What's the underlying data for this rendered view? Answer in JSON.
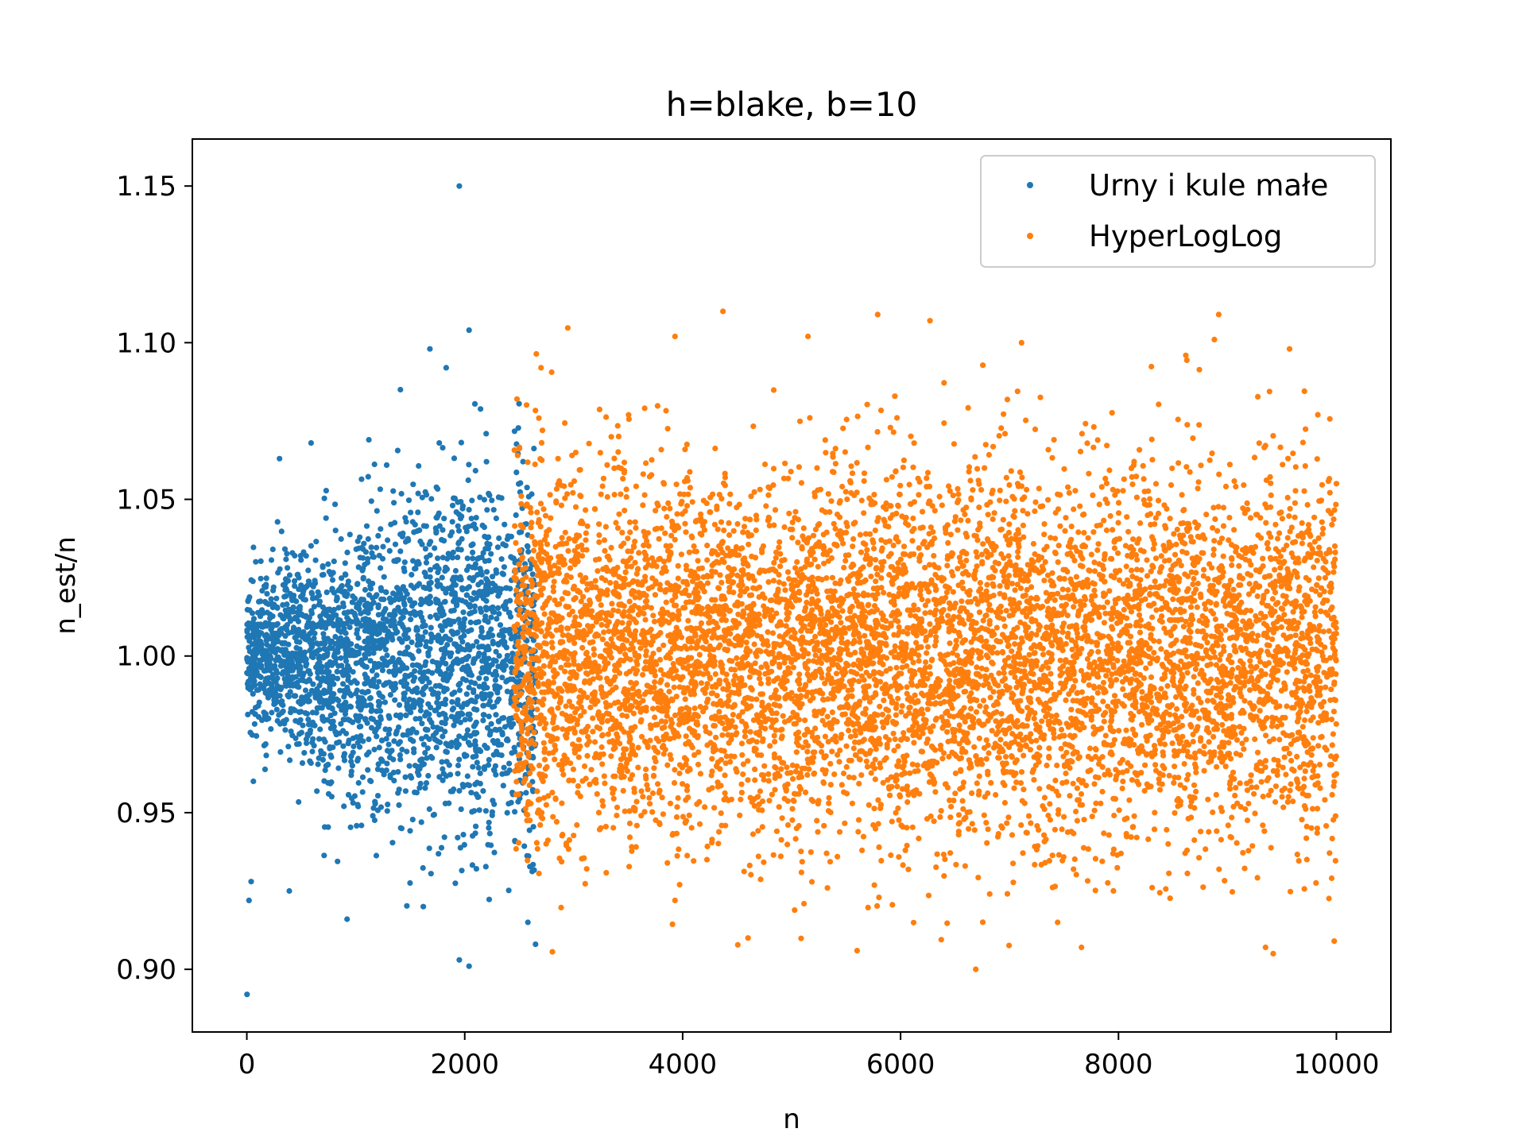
{
  "chart_data": {
    "type": "scatter",
    "title": "h=blake, b=10",
    "xlabel": "n",
    "ylabel": "n_est/n",
    "xlim": [
      -500,
      10500
    ],
    "ylim": [
      0.88,
      1.165
    ],
    "xticks": [
      0,
      2000,
      4000,
      6000,
      8000,
      10000
    ],
    "xtick_labels": [
      "0",
      "2000",
      "4000",
      "6000",
      "8000",
      "10000"
    ],
    "yticks": [
      0.9,
      0.95,
      1.0,
      1.05,
      1.1,
      1.15
    ],
    "ytick_labels": [
      "0.90",
      "0.95",
      "1.00",
      "1.05",
      "1.10",
      "1.15"
    ],
    "grid": false,
    "legend_position": "top-right",
    "series": [
      {
        "name": "Urny i kule małe",
        "color": "#1f77b4",
        "x_range": [
          1,
          2650
        ],
        "points": [
          [
            2,
            0.892
          ],
          [
            1950,
            1.15
          ],
          [
            2040,
            1.104
          ],
          [
            1680,
            1.098
          ],
          [
            1830,
            1.092
          ],
          [
            1410,
            1.085
          ],
          [
            1950,
            0.903
          ],
          [
            2040,
            0.901
          ],
          [
            20,
            0.922
          ],
          [
            40,
            0.928
          ],
          [
            390,
            0.925
          ],
          [
            920,
            0.916
          ],
          [
            1620,
            0.92
          ],
          [
            2580,
            0.915
          ],
          [
            2650,
            0.908
          ],
          [
            590,
            1.068
          ],
          [
            300,
            1.063
          ],
          [
            1120,
            1.069
          ],
          [
            2200,
            1.062
          ],
          [
            60,
            0.96
          ]
        ]
      },
      {
        "name": "HyperLogLog",
        "color": "#ff7f0e",
        "x_range": [
          2450,
          10000
        ],
        "points": [
          [
            4370,
            1.11
          ],
          [
            8920,
            1.109
          ],
          [
            5790,
            1.109
          ],
          [
            6270,
            1.107
          ],
          [
            3930,
            1.102
          ],
          [
            5150,
            1.102
          ],
          [
            7110,
            1.1
          ],
          [
            8880,
            1.101
          ],
          [
            9830,
            1.077
          ],
          [
            6690,
            0.9
          ],
          [
            9420,
            0.905
          ],
          [
            9980,
            0.909
          ],
          [
            4600,
            0.91
          ],
          [
            7660,
            0.907
          ],
          [
            9350,
            0.907
          ],
          [
            3930,
            0.922
          ],
          [
            2700,
            1.092
          ],
          [
            9570,
            1.098
          ],
          [
            2480,
            1.082
          ],
          [
            10000,
            1.055
          ]
        ]
      }
    ]
  }
}
